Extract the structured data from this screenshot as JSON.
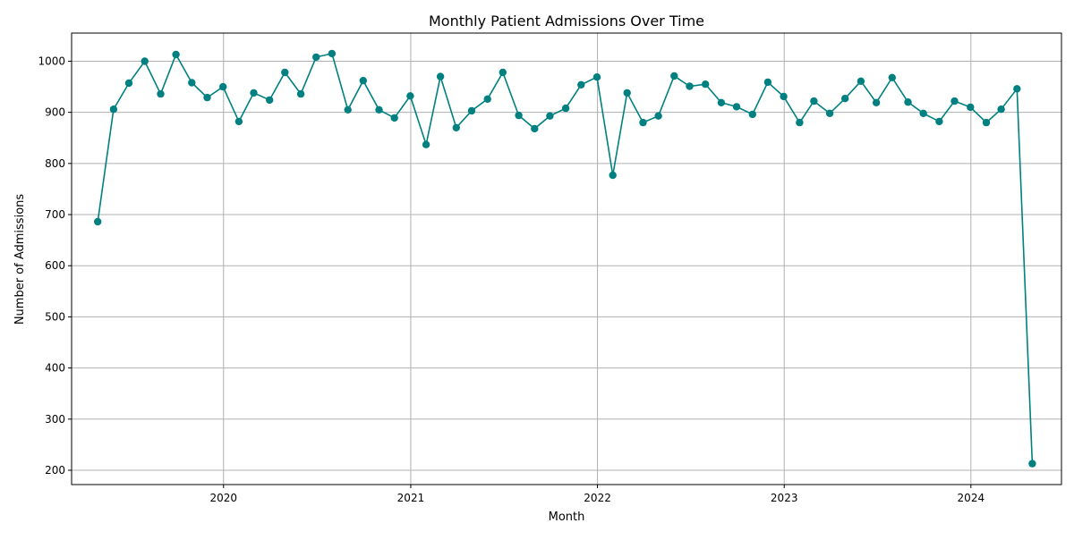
{
  "chart_data": {
    "type": "line",
    "title": "Monthly Patient Admissions Over Time",
    "xlabel": "Month",
    "ylabel": "Number of Admissions",
    "x_ticks": [
      "2020",
      "2021",
      "2022",
      "2023",
      "2024"
    ],
    "y_ticks": [
      200,
      300,
      400,
      500,
      600,
      700,
      800,
      900,
      1000
    ],
    "xlim": [
      "2019-03-10",
      "2024-06-26"
    ],
    "ylim": [
      172,
      1055
    ],
    "grid": true,
    "legend": "none",
    "colors": {
      "line": "#008080",
      "grid": "#b0b0b0",
      "axis": "#000000"
    },
    "series": [
      {
        "x": [
          "2019-04-30",
          "2019-05-31",
          "2019-06-30",
          "2019-07-31",
          "2019-08-31",
          "2019-09-30",
          "2019-10-31",
          "2019-11-30",
          "2019-12-31",
          "2020-01-31",
          "2020-02-29",
          "2020-03-31",
          "2020-04-30",
          "2020-05-31",
          "2020-06-30",
          "2020-07-31",
          "2020-08-31",
          "2020-09-30",
          "2020-10-31",
          "2020-11-30",
          "2020-12-31",
          "2021-01-31",
          "2021-02-28",
          "2021-03-31",
          "2021-04-30",
          "2021-05-31",
          "2021-06-30",
          "2021-07-31",
          "2021-08-31",
          "2021-09-30",
          "2021-10-31",
          "2021-11-30",
          "2021-12-31",
          "2022-01-31",
          "2022-02-28",
          "2022-03-31",
          "2022-04-30",
          "2022-05-31",
          "2022-06-30",
          "2022-07-31",
          "2022-08-31",
          "2022-09-30",
          "2022-10-31",
          "2022-11-30",
          "2022-12-31",
          "2023-01-31",
          "2023-02-28",
          "2023-03-31",
          "2023-04-30",
          "2023-05-31",
          "2023-06-30",
          "2023-07-31",
          "2023-08-31",
          "2023-09-30",
          "2023-10-31",
          "2023-11-30",
          "2023-12-31",
          "2024-01-31",
          "2024-02-29",
          "2024-03-31",
          "2024-04-30"
        ],
        "values": [
          686,
          906,
          957,
          1000,
          936,
          1013,
          958,
          929,
          950,
          882,
          938,
          924,
          978,
          936,
          1008,
          1015,
          905,
          962,
          905,
          889,
          932,
          837,
          970,
          870,
          903,
          926,
          978,
          894,
          868,
          893,
          908,
          954,
          969,
          777,
          938,
          880,
          893,
          971,
          951,
          955,
          919,
          911,
          896,
          959,
          931,
          880,
          922,
          898,
          927,
          961,
          919,
          968,
          920,
          898,
          882,
          922,
          910,
          880,
          906,
          946,
          213
        ]
      }
    ]
  }
}
